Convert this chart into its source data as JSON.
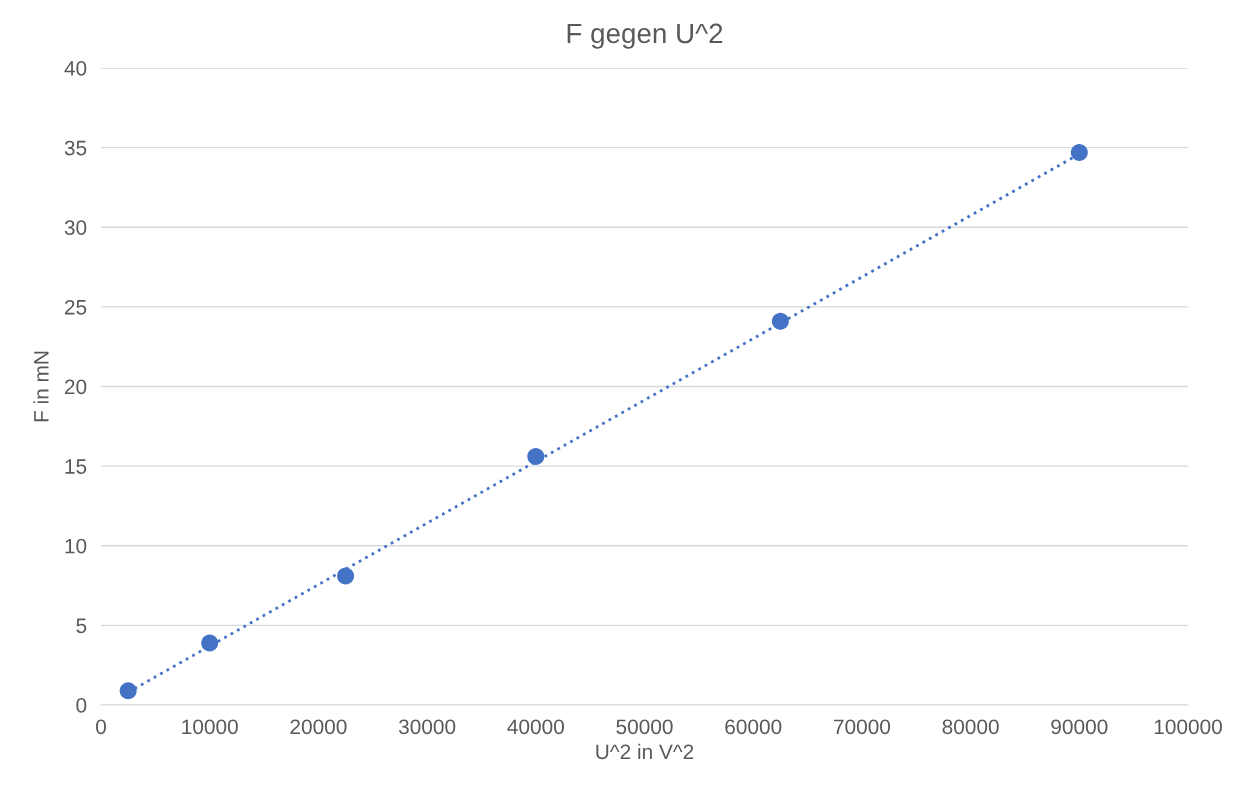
{
  "chart_data": {
    "type": "scatter",
    "title": "F gegen U^2",
    "xlabel": "U^2 in V^2",
    "ylabel": "F in mN",
    "xlim": [
      0,
      100000
    ],
    "xticks": [
      0,
      10000,
      20000,
      30000,
      40000,
      50000,
      60000,
      70000,
      80000,
      90000,
      100000
    ],
    "ylim": [
      0,
      40
    ],
    "yticks": [
      0,
      5,
      10,
      15,
      20,
      25,
      30,
      35,
      40
    ],
    "grid": "y",
    "legend": false,
    "series": [
      {
        "color": "#4472c4",
        "marker": "circle",
        "x": [
          2500,
          10000,
          22500,
          40000,
          62500,
          90000
        ],
        "values": [
          0.9,
          3.9,
          8.1,
          15.6,
          24.1,
          34.7
        ]
      },
      {
        "type": "line",
        "color": "#4472c4",
        "line_style": "dotted",
        "marker": "none",
        "x": [
          2500,
          90000
        ],
        "values": [
          0.8,
          34.6
        ]
      }
    ]
  }
}
